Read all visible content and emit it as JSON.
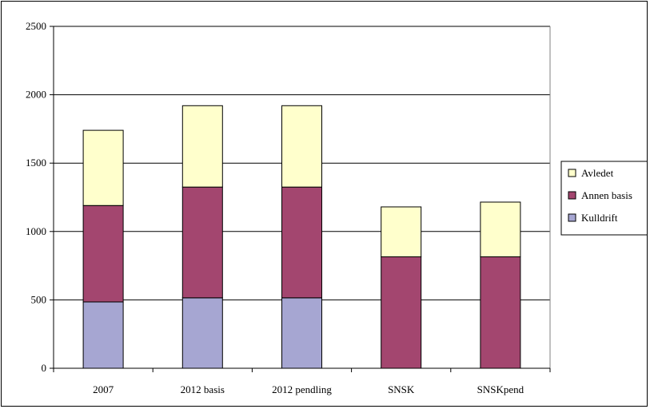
{
  "chart_data": {
    "type": "bar",
    "stacked": true,
    "title": "",
    "xlabel": "",
    "ylabel": "",
    "ylim": [
      0,
      2500
    ],
    "yticks": [
      0,
      500,
      1000,
      1500,
      2000,
      2500
    ],
    "grid": true,
    "legend_position": "right",
    "categories": [
      "2007",
      "2012 basis",
      "2012 pendling",
      "SNSK",
      "SNSKpend"
    ],
    "series": [
      {
        "name": "Kulldrift",
        "color": "#a6a6d2",
        "values": [
          485,
          515,
          515,
          0,
          0
        ]
      },
      {
        "name": "Annen basis",
        "color": "#a3466f",
        "values": [
          705,
          810,
          810,
          815,
          815
        ]
      },
      {
        "name": "Avledet",
        "color": "#ffffcc",
        "values": [
          550,
          595,
          595,
          365,
          400
        ]
      }
    ],
    "legend_order": [
      "Avledet",
      "Annen basis",
      "Kulldrift"
    ]
  }
}
